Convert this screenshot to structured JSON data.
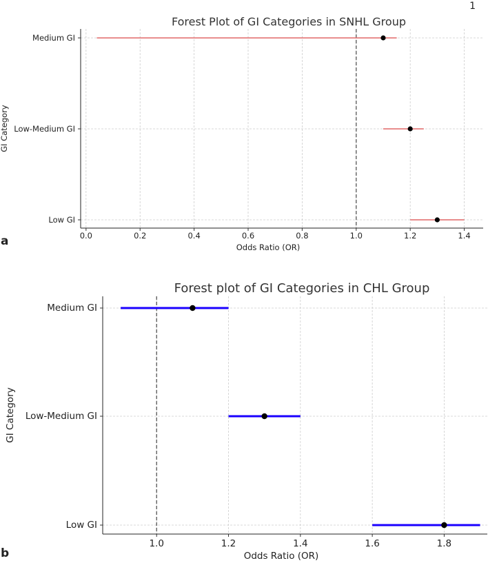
{
  "page_number": "1",
  "panel_labels": [
    "a",
    "b"
  ],
  "chart_data": [
    {
      "type": "forest",
      "title": "Forest Plot of GI Categories in SNHL Group",
      "xlabel": "Odds Ratio (OR)",
      "ylabel": "GI Category",
      "categories": [
        "Medium GI",
        "Low-Medium GI",
        "Low GI"
      ],
      "estimates": [
        1.1,
        1.2,
        1.3
      ],
      "ci_lower": [
        0.04,
        1.1,
        1.2
      ],
      "ci_upper": [
        1.15,
        1.25,
        1.4
      ],
      "reference_line": 1.0,
      "xlim": [
        -0.02,
        1.47
      ],
      "xticks": [
        "0.0",
        "0.2",
        "0.4",
        "0.6",
        "0.8",
        "1.0",
        "1.2",
        "1.4"
      ],
      "ci_color": "#e06666",
      "point_color": "#000000",
      "grid": true
    },
    {
      "type": "forest",
      "title": "Forest plot of GI Categories in CHL Group",
      "xlabel": "Odds Ratio (OR)",
      "ylabel": "GI Category",
      "categories": [
        "Medium GI",
        "Low-Medium GI",
        "Low GI"
      ],
      "estimates": [
        1.1,
        1.3,
        1.8
      ],
      "ci_lower": [
        0.9,
        1.2,
        1.6
      ],
      "ci_upper": [
        1.2,
        1.4,
        1.9
      ],
      "reference_line": 1.0,
      "xlim": [
        0.85,
        1.92
      ],
      "xticks": [
        "1.0",
        "1.2",
        "1.4",
        "1.6",
        "1.8"
      ],
      "ci_color": "#1a00ff",
      "point_color": "#000000",
      "grid": true
    }
  ]
}
